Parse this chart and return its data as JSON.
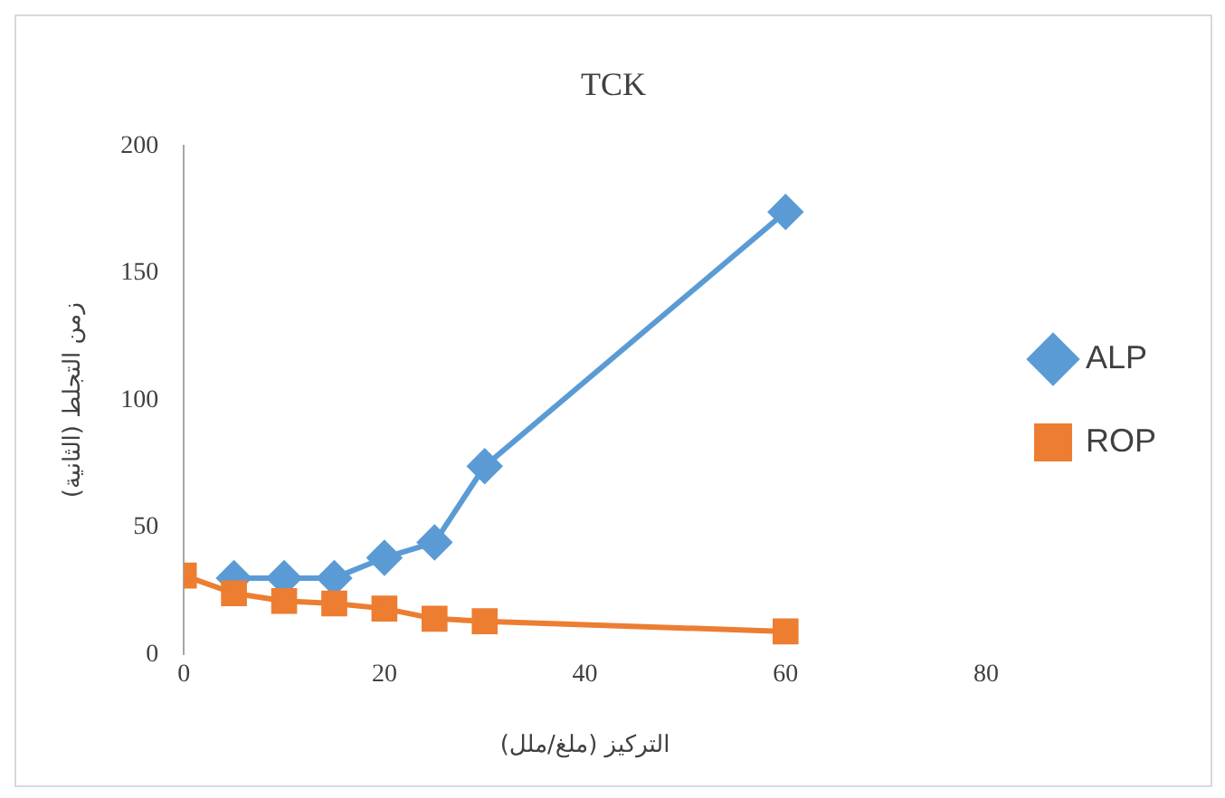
{
  "chart_data": {
    "type": "line",
    "title": "TCK",
    "xlabel": "التركيز (ملغ/ملل)",
    "ylabel": "زمن التجلط (الثانية)",
    "x": [
      0,
      5,
      10,
      15,
      20,
      25,
      30,
      60
    ],
    "series": [
      {
        "name": "ALP",
        "color": "#5b9bd5",
        "marker": "diamond",
        "values": [
          null,
          30,
          30,
          30,
          38,
          44,
          74,
          174
        ]
      },
      {
        "name": "ROP",
        "color": "#ed7d31",
        "marker": "square",
        "values": [
          31,
          24,
          21,
          20,
          18,
          14,
          13,
          9
        ]
      }
    ],
    "xlim": [
      0,
      80
    ],
    "xticks": [
      0,
      20,
      40,
      60,
      80
    ],
    "ylim": [
      0,
      200
    ],
    "yticks": [
      0,
      50,
      100,
      150,
      200
    ],
    "grid": false,
    "legend": "right"
  }
}
